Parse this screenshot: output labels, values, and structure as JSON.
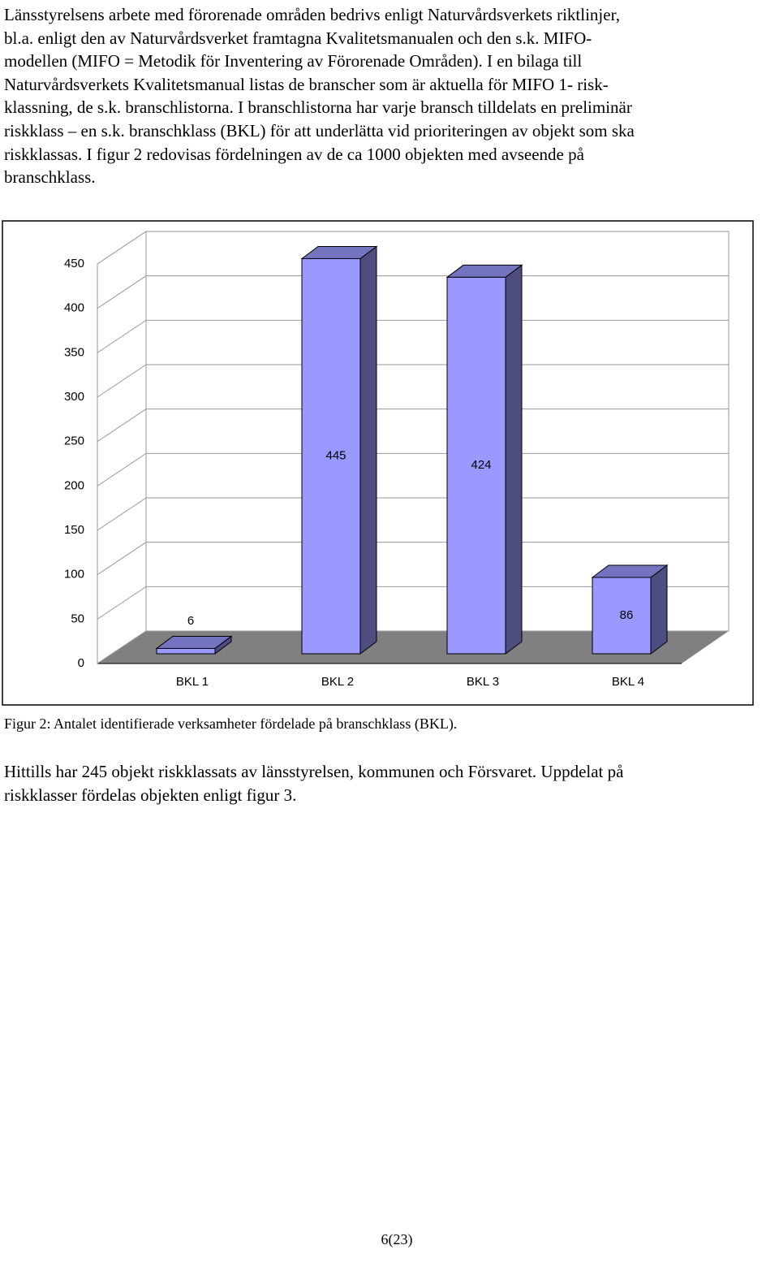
{
  "paragraphs": [
    {
      "lines": [
        "Länsstyrelsens arbete med förorenade områden bedrivs enligt Naturvårdsverkets riktlinjer,",
        "bl.a. enligt den av Naturvårdsverket framtagna Kvalitetsmanualen och den s.k. MIFO-",
        "modellen (MIFO = Metodik för Inventering av Förorenade Områden). I en bilaga till",
        "Naturvårdsverkets Kvalitetsmanual listas de branscher som är aktuella för MIFO 1- risk-",
        "klassning, de s.k. branschlistorna. I branschlistorna har varje bransch tilldelats en preliminär",
        "riskklass – en s.k. branschklass (BKL) för att underlätta vid prioriteringen av objekt som ska",
        "riskklassas. I figur 2 redovisas fördelningen av de ca 1000 objekten med avseende på",
        "branschklass."
      ]
    },
    {
      "lines": [
        "Hittills har 245 objekt riskklassats av länsstyrelsen, kommunen och Försvaret. Uppdelat på",
        "riskklasser fördelas objekten enligt figur 3."
      ]
    }
  ],
  "chart_data": {
    "type": "bar",
    "categories": [
      "BKL 1",
      "BKL 2",
      "BKL 3",
      "BKL 4"
    ],
    "values": [
      6,
      445,
      424,
      86
    ],
    "color": "#9999ff",
    "ylim": [
      0,
      450
    ],
    "yticks": [
      0,
      50,
      100,
      150,
      200,
      250,
      300,
      350,
      400,
      450
    ],
    "grid": true
  },
  "caption": "Figur 2: Antalet identifierade verksamheter fördelade på branschklass (BKL).",
  "page_number": "6(23)"
}
